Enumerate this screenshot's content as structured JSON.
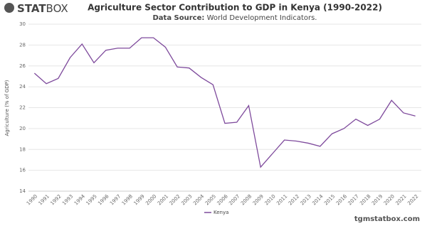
{
  "brand": {
    "bold": "STAT",
    "light": "BOX"
  },
  "chart_data": {
    "type": "line",
    "title": "Agriculture Sector Contribution to GDP in Kenya (1990-2022)",
    "source_label": "Data Source:",
    "source": "World Development Indicators.",
    "y_label": "Agriculture (% of GDP)",
    "categories": [
      "1990",
      "1991",
      "1992",
      "1993",
      "1994",
      "1995",
      "1996",
      "1997",
      "1998",
      "1999",
      "2000",
      "2001",
      "2002",
      "2003",
      "2004",
      "2005",
      "2006",
      "2007",
      "2008",
      "2009",
      "2010",
      "2011",
      "2012",
      "2013",
      "2014",
      "2015",
      "2016",
      "2017",
      "2018",
      "2019",
      "2020",
      "2021",
      "2022"
    ],
    "series": [
      {
        "name": "Kenya",
        "color": "#7e4a9c",
        "values": [
          25.3,
          24.3,
          24.8,
          26.8,
          28.1,
          26.3,
          27.5,
          27.7,
          27.7,
          28.7,
          28.7,
          27.8,
          25.9,
          25.8,
          24.9,
          24.2,
          20.5,
          20.6,
          22.2,
          16.3,
          17.6,
          18.9,
          18.8,
          18.6,
          18.3,
          19.5,
          20.0,
          20.9,
          20.3,
          20.9,
          22.7,
          21.5,
          21.2
        ]
      }
    ],
    "ylim": [
      14,
      30
    ],
    "yticks": [
      14,
      16,
      18,
      20,
      22,
      24,
      26,
      28,
      30
    ],
    "grid": true,
    "legend": "bottom"
  },
  "footer": "tgmstatbox.com"
}
